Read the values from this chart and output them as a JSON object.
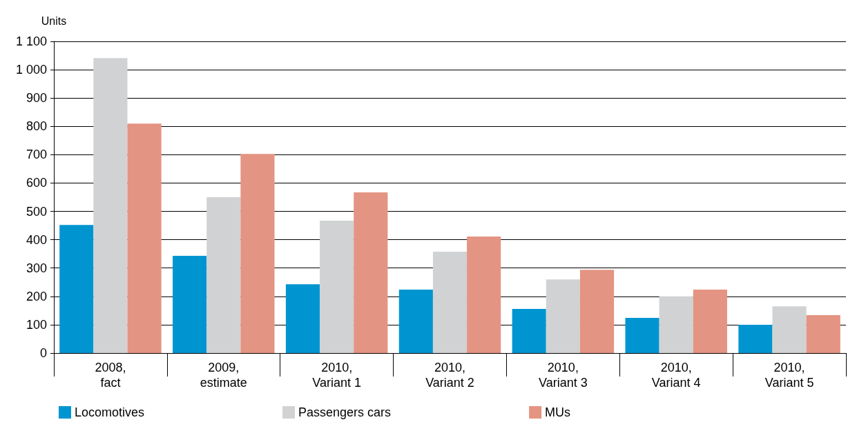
{
  "chart_data": {
    "type": "bar",
    "ylabel": "Units",
    "categories": [
      "2008,\nfact",
      "2009,\nestimate",
      "2010,\nVariant 1",
      "2010,\nVariant 2",
      "2010,\nVariant 3",
      "2010,\nVariant 4",
      "2010,\nVariant 5"
    ],
    "series": [
      {
        "name": "Locomotives",
        "color": "#0095d0",
        "values": [
          452,
          343,
          243,
          224,
          156,
          124,
          100
        ]
      },
      {
        "name": "Passengers cars",
        "color": "#d1d2d4",
        "values": [
          1041,
          550,
          467,
          358,
          260,
          200,
          165
        ]
      },
      {
        "name": "MUs",
        "color": "#e49482",
        "values": [
          810,
          703,
          567,
          411,
          294,
          224,
          134
        ]
      }
    ],
    "ylim": [
      0,
      1100
    ],
    "yticks": [
      0,
      100,
      200,
      300,
      400,
      500,
      600,
      700,
      800,
      900,
      {
        "value": 1000,
        "label": "1 000"
      },
      {
        "value": 1100,
        "label": "1 100"
      }
    ],
    "grid": "y",
    "legend": "bottom"
  }
}
